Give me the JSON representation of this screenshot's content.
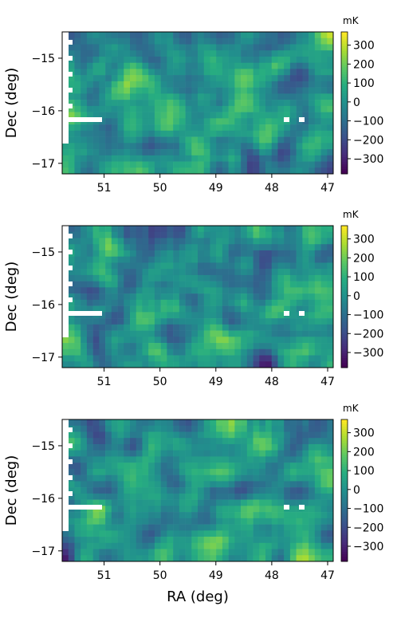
{
  "chart_data": [
    {
      "type": "heatmap",
      "panel": "top",
      "xlabel": "",
      "ylabel": "Dec (deg)",
      "xlim": [
        51.75,
        46.9
      ],
      "ylim": [
        -17.2,
        -14.5
      ],
      "x_ticks": [
        51,
        50,
        49,
        48,
        47
      ],
      "x_tick_labels": [
        "51",
        "50",
        "49",
        "48",
        "47"
      ],
      "y_ticks": [
        -15,
        -16,
        -17
      ],
      "y_tick_labels": [
        "−15",
        "−16",
        "−17"
      ],
      "colorbar": {
        "label": "mK",
        "range": [
          -380,
          370
        ],
        "ticks": [
          300,
          200,
          100,
          0,
          -100,
          -200,
          -300
        ],
        "tick_labels": [
          "300",
          "200",
          "100",
          "0",
          "−100",
          "−200",
          "−300"
        ]
      },
      "colormap": "viridis",
      "grid": false
    },
    {
      "type": "heatmap",
      "panel": "middle",
      "xlabel": "",
      "ylabel": "Dec (deg)",
      "xlim": [
        51.75,
        46.9
      ],
      "ylim": [
        -17.2,
        -14.5
      ],
      "x_ticks": [
        51,
        50,
        49,
        48,
        47
      ],
      "x_tick_labels": [
        "51",
        "50",
        "49",
        "48",
        "47"
      ],
      "y_ticks": [
        -15,
        -16,
        -17
      ],
      "y_tick_labels": [
        "−15",
        "−16",
        "−17"
      ],
      "colorbar": {
        "label": "mK",
        "range": [
          -380,
          370
        ],
        "ticks": [
          300,
          200,
          100,
          0,
          -100,
          -200,
          -300
        ],
        "tick_labels": [
          "300",
          "200",
          "100",
          "0",
          "−100",
          "−200",
          "−300"
        ]
      },
      "colormap": "viridis",
      "grid": false
    },
    {
      "type": "heatmap",
      "panel": "bottom",
      "xlabel": "RA (deg)",
      "ylabel": "Dec (deg)",
      "xlim": [
        51.75,
        46.9
      ],
      "ylim": [
        -17.2,
        -14.5
      ],
      "x_ticks": [
        51,
        50,
        49,
        48,
        47
      ],
      "x_tick_labels": [
        "51",
        "50",
        "49",
        "48",
        "47"
      ],
      "y_ticks": [
        -15,
        -16,
        -17
      ],
      "y_tick_labels": [
        "−15",
        "−16",
        "−17"
      ],
      "colorbar": {
        "label": "mK",
        "range": [
          -380,
          370
        ],
        "ticks": [
          300,
          200,
          100,
          0,
          -100,
          -200,
          -300
        ],
        "tick_labels": [
          "300",
          "200",
          "100",
          "0",
          "−100",
          "−200",
          "−300"
        ]
      },
      "colormap": "viridis",
      "grid": false
    }
  ]
}
